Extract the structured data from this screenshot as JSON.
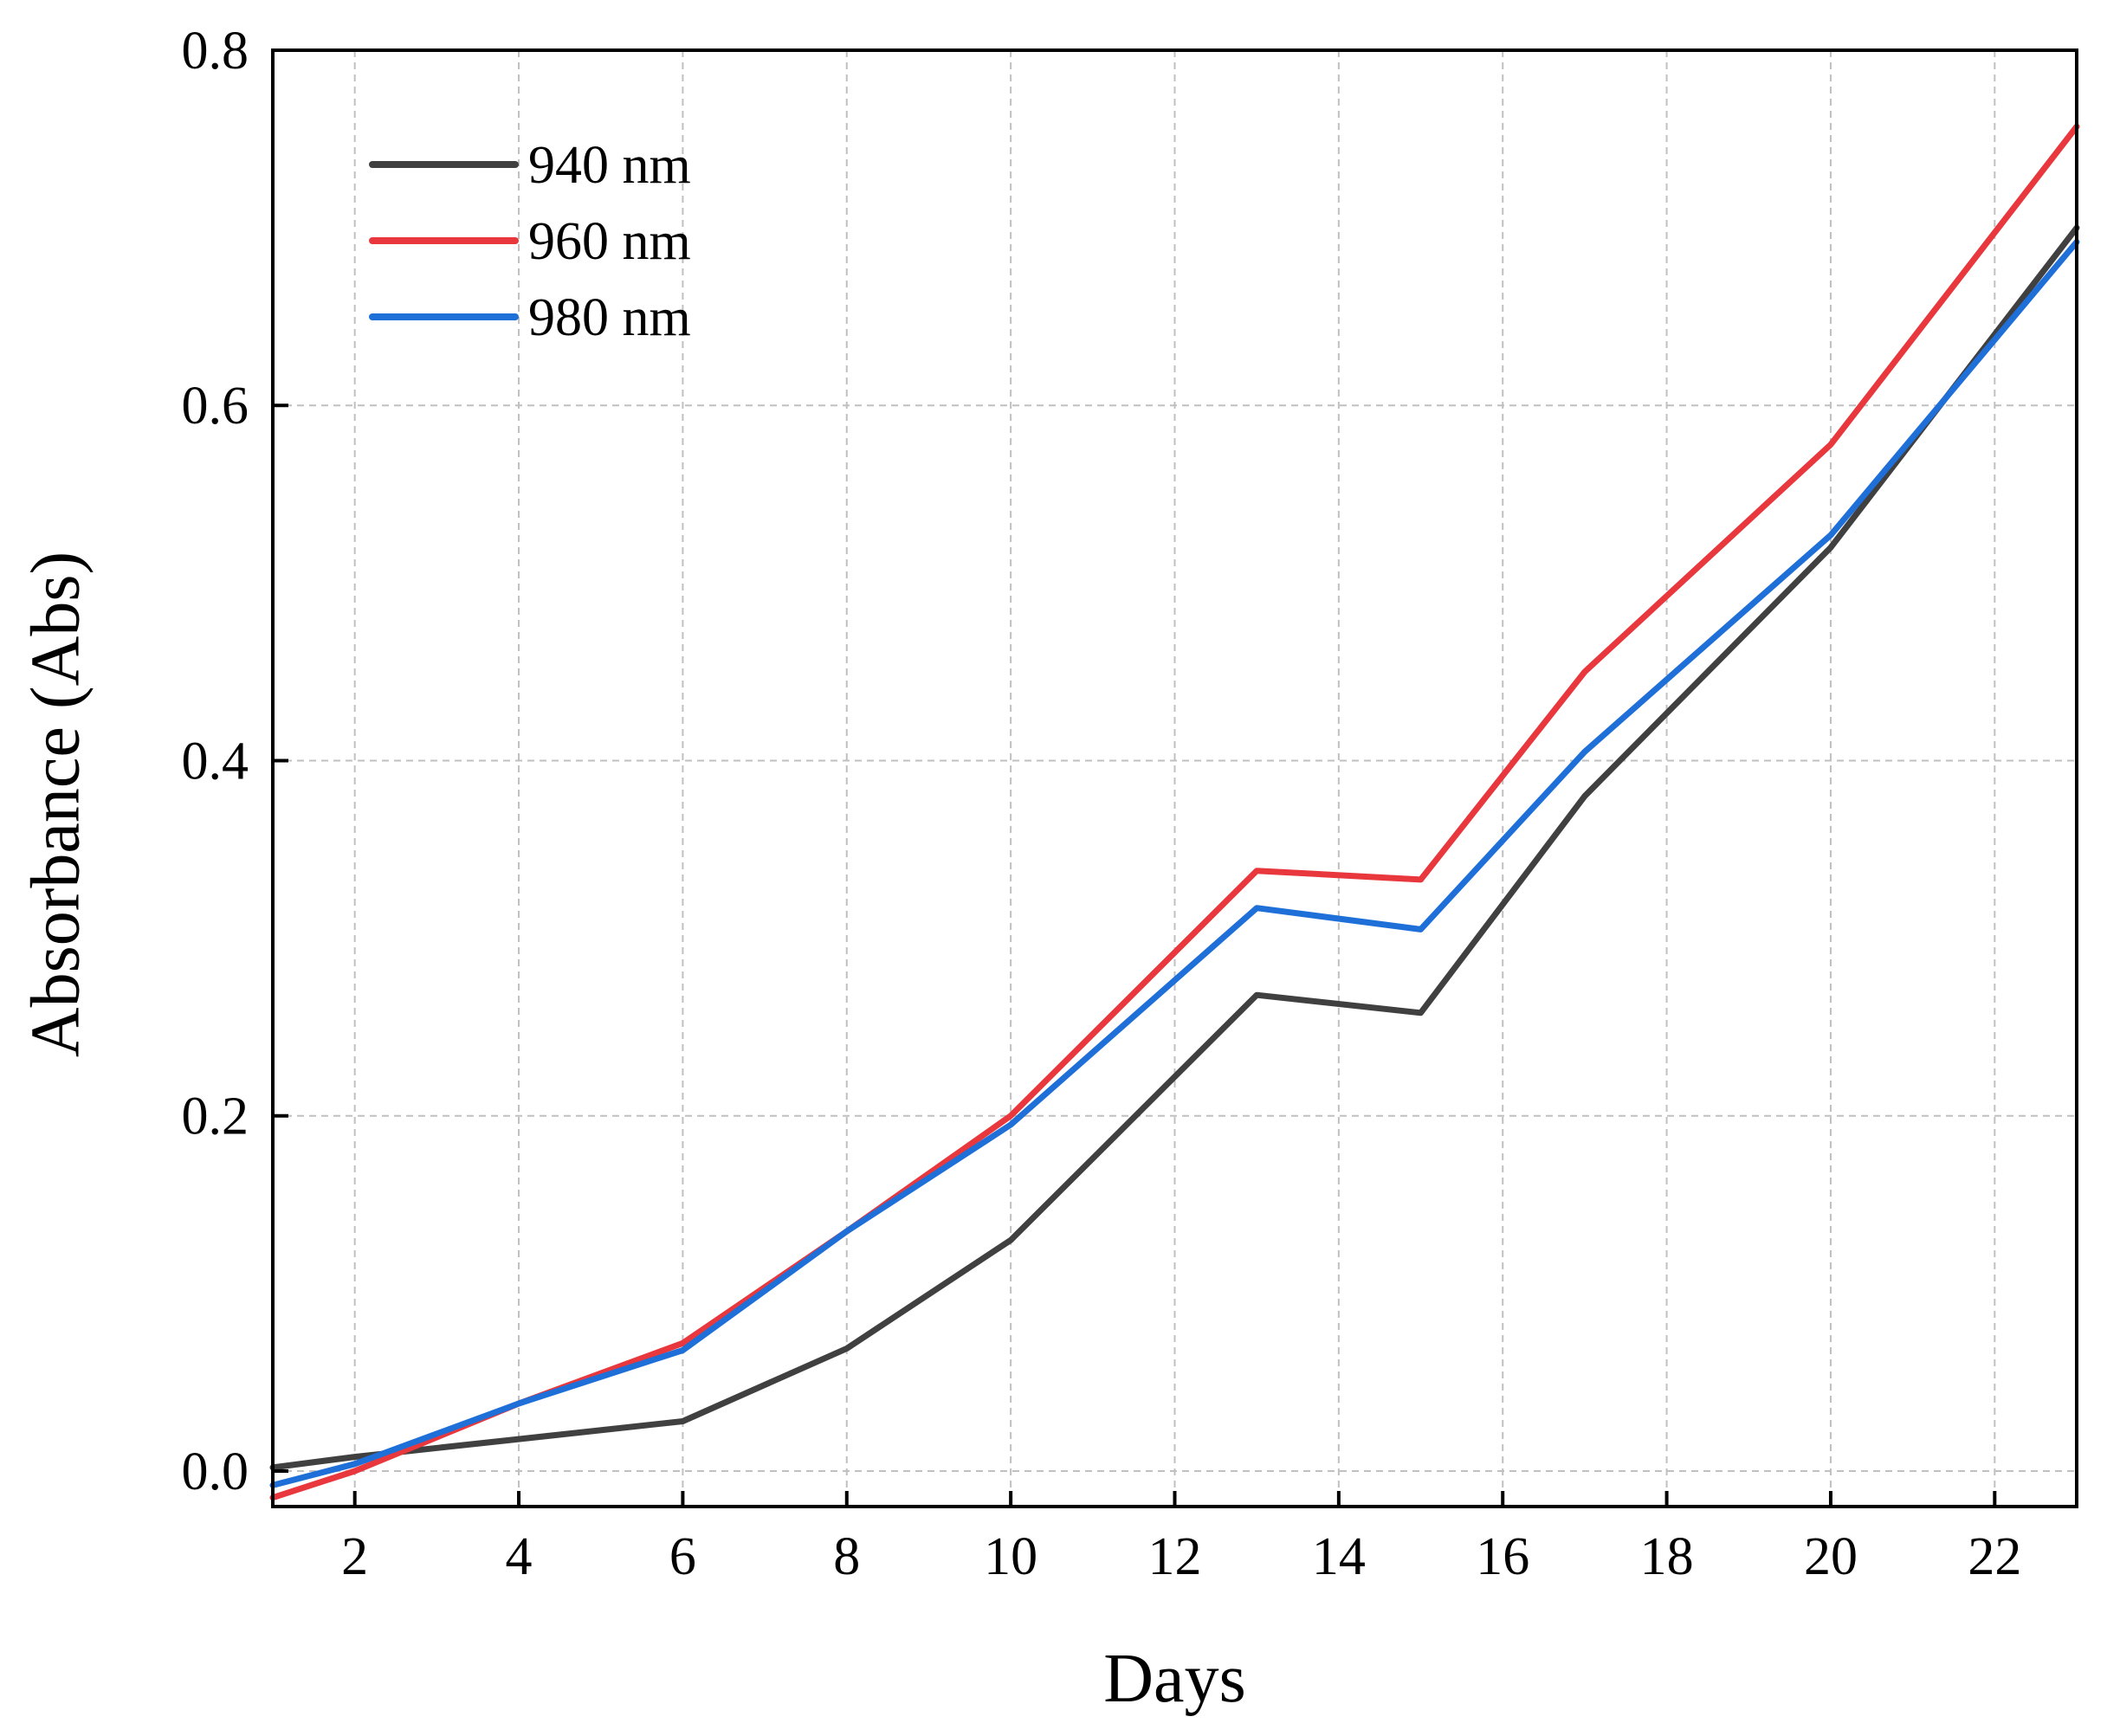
{
  "chart_data": {
    "type": "line",
    "title": "",
    "xlabel": "Days",
    "ylabel": "Absorbance (Abs)",
    "xlim": [
      1,
      23
    ],
    "ylim": [
      -0.02,
      0.8
    ],
    "x_ticks": [
      2,
      4,
      6,
      8,
      10,
      12,
      14,
      16,
      18,
      20,
      22
    ],
    "y_ticks": [
      0.0,
      0.2,
      0.4,
      0.6,
      0.8
    ],
    "y_tick_labels": [
      "0.0",
      "0.2",
      "0.4",
      "0.6",
      "0.8"
    ],
    "grid": true,
    "legend_position": "top-left",
    "x": [
      1,
      2,
      4,
      6,
      8,
      10,
      13,
      15,
      17,
      20,
      23
    ],
    "series": [
      {
        "name": "940 nm",
        "color": "#404040",
        "values": [
          0.002,
          0.008,
          0.018,
          0.028,
          0.069,
          0.13,
          0.268,
          0.258,
          0.38,
          0.52,
          0.7
        ]
      },
      {
        "name": "960 nm",
        "color": "#e8383d",
        "values": [
          -0.015,
          0.0,
          0.038,
          0.072,
          0.135,
          0.2,
          0.338,
          0.333,
          0.45,
          0.578,
          0.757
        ]
      },
      {
        "name": "980 nm",
        "color": "#1f6fd9",
        "values": [
          -0.008,
          0.004,
          0.038,
          0.068,
          0.135,
          0.195,
          0.317,
          0.305,
          0.405,
          0.527,
          0.692
        ]
      }
    ]
  }
}
